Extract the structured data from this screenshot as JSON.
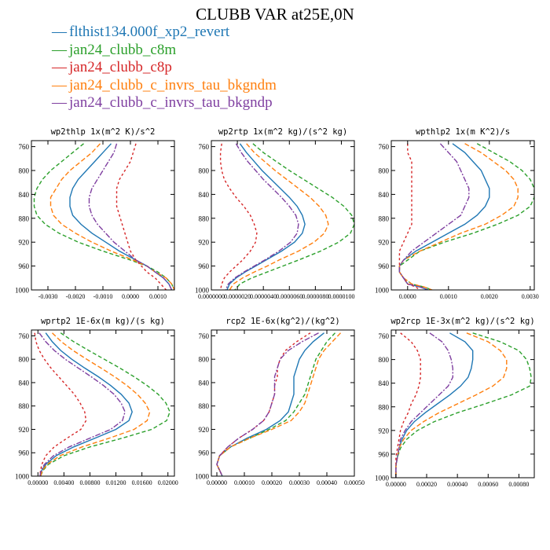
{
  "title": "CLUBB VAR at25E,0N",
  "legend": [
    {
      "label": "flthist134.000f_xp2_revert",
      "color": "#1f77b4",
      "symbol": "—"
    },
    {
      "label": "jan24_clubb_c8m",
      "color": "#2ca02c",
      "symbol": "—"
    },
    {
      "label": "jan24_clubb_c8p",
      "color": "#d62728",
      "symbol": "—"
    },
    {
      "label": "jan24_clubb_c_invrs_tau_bkgndm",
      "color": "#ff7f0e",
      "symbol": "—"
    },
    {
      "label": "jan24_clubb_c_invrs_tau_bkgndp",
      "color": "#7f3fa0",
      "symbol": "—"
    }
  ],
  "chart_data": [
    {
      "type": "line",
      "title": "wp2thlp  1x(m^2 K)/s^2",
      "xlim": [
        -0.0036,
        0.0016
      ],
      "ylim": [
        1000,
        750
      ],
      "xticks": [
        -0.003,
        -0.002,
        -0.001,
        0.0,
        0.001
      ],
      "xtick_labels": [
        "-0.0030",
        "-0.0020",
        "-0.0010",
        "0.0000",
        "0.0010"
      ],
      "yticks": [
        760,
        800,
        840,
        880,
        920,
        960,
        1000
      ],
      "y": [
        755,
        770,
        785,
        800,
        815,
        830,
        845,
        860,
        875,
        890,
        905,
        920,
        935,
        950,
        960,
        970,
        980,
        990,
        1000
      ],
      "series": [
        {
          "values": [
            -0.0007,
            -0.001,
            -0.0013,
            -0.0016,
            -0.0019,
            -0.0021,
            -0.0022,
            -0.0022,
            -0.0021,
            -0.0018,
            -0.0014,
            -0.0009,
            -0.0004,
            0.0002,
            0.0006,
            0.0009,
            0.0012,
            0.0014,
            0.0015
          ]
        },
        {
          "values": [
            -0.0017,
            -0.0021,
            -0.0025,
            -0.0029,
            -0.0032,
            -0.0034,
            -0.0035,
            -0.0035,
            -0.0034,
            -0.0031,
            -0.0026,
            -0.0019,
            -0.001,
            0.0,
            0.0006,
            0.001,
            0.0013,
            0.0015,
            0.0016
          ]
        },
        {
          "values": [
            0.0002,
            0.0001,
            0.0,
            -0.0002,
            -0.0004,
            -0.0005,
            -0.0005,
            -0.0005,
            -0.0004,
            -0.0003,
            -0.0002,
            -0.0001,
            0.0,
            0.0002,
            0.0004,
            0.0006,
            0.0009,
            0.0011,
            0.0013
          ]
        },
        {
          "values": [
            -0.0011,
            -0.0014,
            -0.0018,
            -0.0022,
            -0.0025,
            -0.0027,
            -0.0029,
            -0.0029,
            -0.0028,
            -0.0025,
            -0.002,
            -0.0014,
            -0.0007,
            0.0001,
            0.0006,
            0.0009,
            0.0013,
            0.0015,
            0.0016
          ]
        },
        {
          "values": [
            -0.0005,
            -0.0006,
            -0.0008,
            -0.001,
            -0.0012,
            -0.0014,
            -0.0015,
            -0.0015,
            -0.0014,
            -0.0012,
            -0.0009,
            -0.0006,
            -0.0002,
            0.0002,
            0.0006,
            0.0009,
            0.0012,
            0.0014,
            0.0015
          ]
        }
      ]
    },
    {
      "type": "line",
      "title": "wp2rtp  1x(m^2 kg)/(s^2 kg)",
      "xlim": [
        0.0,
        1.1e-05
      ],
      "ylim": [
        1000,
        750
      ],
      "xticks": [
        0.0,
        2e-06,
        4e-06,
        6e-06,
        8e-06,
        1e-05
      ],
      "xtick_labels": [
        "0.0000000",
        "0.0000020",
        "0.0000040",
        "0.0000060",
        "0.0000080",
        "0.0000100"
      ],
      "yticks": [
        760,
        800,
        840,
        880,
        920,
        960,
        1000
      ],
      "y": [
        755,
        770,
        785,
        800,
        815,
        830,
        845,
        860,
        875,
        890,
        905,
        920,
        935,
        950,
        960,
        970,
        980,
        990,
        1000
      ],
      "series": [
        {
          "values": [
            2.2e-06,
            2.7e-06,
            3.3e-06,
            3.9e-06,
            4.6e-06,
            5.3e-06,
            6e-06,
            6.6e-06,
            7e-06,
            7.2e-06,
            7e-06,
            6.4e-06,
            5.4e-06,
            4.2e-06,
            3.4e-06,
            2.6e-06,
            1.9e-06,
            1.4e-06,
            1.2e-06
          ]
        },
        {
          "values": [
            3.2e-06,
            4e-06,
            5e-06,
            6e-06,
            7.1e-06,
            8.2e-06,
            9.3e-06,
            1.02e-05,
            1.08e-05,
            1.1e-05,
            1.07e-05,
            9.8e-06,
            8.4e-06,
            6.7e-06,
            5.5e-06,
            4.3e-06,
            3.1e-06,
            2.2e-06,
            1.8e-06
          ]
        },
        {
          "values": [
            8e-07,
            7e-07,
            7e-07,
            8e-07,
            1e-06,
            1.4e-06,
            1.9e-06,
            2.5e-06,
            3e-06,
            3.3e-06,
            3.5e-06,
            3.4e-06,
            3e-06,
            2.4e-06,
            1.9e-06,
            1.4e-06,
            1e-06,
            8e-07,
            7e-07
          ]
        },
        {
          "values": [
            2.7e-06,
            3.3e-06,
            4.1e-06,
            4.9e-06,
            5.8e-06,
            6.7e-06,
            7.6e-06,
            8.3e-06,
            8.8e-06,
            9e-06,
            8.7e-06,
            7.9e-06,
            6.7e-06,
            5.2e-06,
            4.3e-06,
            3.3e-06,
            2.4e-06,
            1.7e-06,
            1.4e-06
          ]
        },
        {
          "values": [
            1.9e-06,
            2.3e-06,
            2.8e-06,
            3.4e-06,
            4e-06,
            4.7e-06,
            5.4e-06,
            6e-06,
            6.5e-06,
            6.7e-06,
            6.6e-06,
            6.1e-06,
            5.2e-06,
            4.1e-06,
            3.3e-06,
            2.5e-06,
            1.8e-06,
            1.3e-06,
            1.1e-06
          ]
        }
      ]
    },
    {
      "type": "line",
      "title": "wpthlp2  1x(m K^2)/s",
      "xlim": [
        -0.0004,
        0.0031
      ],
      "ylim": [
        1000,
        750
      ],
      "xticks": [
        0.0,
        0.001,
        0.002,
        0.003
      ],
      "xtick_labels": [
        "0.0000",
        "0.0010",
        "0.0020",
        "0.0030"
      ],
      "yticks": [
        760,
        800,
        840,
        880,
        920,
        960,
        1000
      ],
      "y": [
        755,
        770,
        785,
        800,
        815,
        830,
        845,
        860,
        875,
        890,
        905,
        920,
        935,
        950,
        960,
        970,
        980,
        990,
        995,
        1000
      ],
      "series": [
        {
          "values": [
            0.0011,
            0.0014,
            0.0016,
            0.0018,
            0.0019,
            0.002,
            0.002,
            0.0019,
            0.0017,
            0.0014,
            0.001,
            0.0006,
            0.0002,
            -0.0001,
            -0.0002,
            -0.0002,
            -0.0001,
            0.0,
            0.0003,
            0.0005
          ]
        },
        {
          "values": [
            0.0017,
            0.0021,
            0.0025,
            0.0028,
            0.003,
            0.0031,
            0.0031,
            0.003,
            0.0027,
            0.0022,
            0.0016,
            0.0009,
            0.0003,
            0.0,
            -0.0002,
            -0.0002,
            -0.0001,
            0.0001,
            0.0004,
            0.0006
          ]
        },
        {
          "values": [
            0.0,
            0.0,
            0.0001,
            0.0001,
            0.0001,
            0.0001,
            0.0001,
            0.0001,
            0.0001,
            0.0001,
            0.0,
            -0.0001,
            -0.0002,
            -0.0002,
            -0.0002,
            -0.0002,
            -0.0001,
            0.0,
            0.0002,
            0.0003
          ]
        },
        {
          "values": [
            0.0014,
            0.0018,
            0.0021,
            0.0024,
            0.0026,
            0.0027,
            0.0027,
            0.0026,
            0.0023,
            0.0019,
            0.0013,
            0.0008,
            0.0003,
            -0.0001,
            -0.0002,
            -0.0002,
            -0.0001,
            0.0001,
            0.0004,
            0.0006
          ]
        },
        {
          "values": [
            0.0008,
            0.001,
            0.0012,
            0.0013,
            0.0014,
            0.0015,
            0.0015,
            0.0014,
            0.0013,
            0.001,
            0.0007,
            0.0004,
            0.0001,
            -0.0001,
            -0.0002,
            -0.0002,
            -0.0001,
            0.0,
            0.0003,
            0.0005
          ]
        }
      ]
    },
    {
      "type": "line",
      "title": "wprtp2  1E-6x(m kg)/(s kg)",
      "xlim": [
        -0.001,
        0.021
      ],
      "ylim": [
        1000,
        750
      ],
      "xticks": [
        0.0,
        0.004,
        0.008,
        0.012,
        0.016,
        0.02
      ],
      "xtick_labels": [
        "0.00000",
        "0.00400",
        "0.00800",
        "0.01200",
        "0.01600",
        "0.02000"
      ],
      "yticks": [
        760,
        800,
        840,
        880,
        920,
        960,
        1000
      ],
      "y": [
        755,
        770,
        785,
        800,
        815,
        830,
        845,
        860,
        875,
        890,
        905,
        920,
        935,
        950,
        965,
        980,
        990,
        1000
      ],
      "series": [
        {
          "values": [
            0.0012,
            0.0022,
            0.0035,
            0.0052,
            0.0072,
            0.0093,
            0.0112,
            0.0128,
            0.014,
            0.0145,
            0.014,
            0.012,
            0.0088,
            0.0055,
            0.0028,
            0.0012,
            0.0006,
            0.0004
          ]
        },
        {
          "values": [
            0.0035,
            0.0055,
            0.0078,
            0.0102,
            0.0126,
            0.0148,
            0.0168,
            0.0185,
            0.0197,
            0.0203,
            0.0198,
            0.0175,
            0.013,
            0.008,
            0.004,
            0.0016,
            0.0008,
            0.0004
          ]
        },
        {
          "values": [
            -0.0005,
            -0.0003,
            0.0002,
            0.001,
            0.002,
            0.0032,
            0.0044,
            0.0056,
            0.0065,
            0.0072,
            0.0074,
            0.0066,
            0.0045,
            0.0025,
            0.0012,
            0.0006,
            0.0004,
            0.0003
          ]
        },
        {
          "values": [
            0.0022,
            0.0036,
            0.0054,
            0.0075,
            0.0097,
            0.0118,
            0.0137,
            0.0153,
            0.0165,
            0.0172,
            0.0168,
            0.0148,
            0.011,
            0.0068,
            0.0034,
            0.0014,
            0.0007,
            0.0004
          ]
        },
        {
          "values": [
            0.0002,
            0.0012,
            0.0025,
            0.0042,
            0.0062,
            0.0082,
            0.0101,
            0.0117,
            0.0128,
            0.0134,
            0.013,
            0.0112,
            0.008,
            0.0048,
            0.0024,
            0.001,
            0.0005,
            0.0003
          ]
        }
      ]
    },
    {
      "type": "line",
      "title": "rcp2  1E-6x(kg^2)/(kg^2)",
      "xlim": [
        -2e-05,
        0.0005
      ],
      "ylim": [
        1000,
        750
      ],
      "xticks": [
        0.0,
        0.0001,
        0.0002,
        0.0003,
        0.0004,
        0.0005
      ],
      "xtick_labels": [
        "0.00000",
        "0.00010",
        "0.00020",
        "0.00030",
        "0.00040",
        "0.00050"
      ],
      "yticks": [
        760,
        800,
        840,
        880,
        920,
        960,
        1000
      ],
      "y": [
        755,
        770,
        785,
        800,
        815,
        830,
        845,
        860,
        875,
        890,
        905,
        920,
        935,
        950,
        965,
        980,
        990,
        1000
      ],
      "series": [
        {
          "values": [
            0.00039,
            0.00035,
            0.00032,
            0.0003,
            0.00029,
            0.00028,
            0.00028,
            0.00028,
            0.00027,
            0.00026,
            0.00023,
            0.00018,
            0.00011,
            5e-05,
            1e-05,
            0.0,
            1e-05,
            2e-05
          ]
        },
        {
          "values": [
            0.00043,
            0.0004,
            0.00038,
            0.00036,
            0.00035,
            0.00034,
            0.00033,
            0.00032,
            0.0003,
            0.00028,
            0.00025,
            0.00019,
            0.00012,
            5e-05,
            1e-05,
            0.0,
            1e-05,
            2e-05
          ]
        },
        {
          "values": [
            0.00034,
            0.00029,
            0.00025,
            0.00023,
            0.00022,
            0.00022,
            0.00021,
            0.00021,
            0.0002,
            0.00019,
            0.00017,
            0.00013,
            8e-05,
            4e-05,
            1e-05,
            0.0,
            1e-05,
            2e-05
          ]
        },
        {
          "values": [
            0.00045,
            0.00042,
            0.00039,
            0.00037,
            0.00036,
            0.00035,
            0.00034,
            0.00033,
            0.00032,
            0.0003,
            0.00027,
            0.0002,
            0.00012,
            5e-05,
            1e-05,
            0.0,
            1e-05,
            2e-05
          ]
        },
        {
          "values": [
            0.00037,
            0.00031,
            0.00026,
            0.00023,
            0.00022,
            0.00021,
            0.00021,
            0.00021,
            0.0002,
            0.00019,
            0.00017,
            0.00013,
            8e-05,
            4e-05,
            1e-05,
            0.0,
            1e-05,
            2e-05
          ]
        }
      ]
    },
    {
      "type": "line",
      "title": "wp2rcp  1E-3x(m^2 kg)/(s^2 kg)",
      "xlim": [
        -3e-05,
        0.0009
      ],
      "ylim": [
        1000,
        750
      ],
      "xticks": [
        0.0,
        0.0002,
        0.0004,
        0.0006,
        0.0008
      ],
      "xtick_labels": [
        "0.00000",
        "0.00020",
        "0.00040",
        "0.00060",
        "0.00080"
      ],
      "yticks": [
        760,
        800,
        840,
        880,
        920,
        960,
        1000
      ],
      "y": [
        755,
        770,
        785,
        800,
        815,
        830,
        845,
        860,
        875,
        890,
        905,
        920,
        935,
        950,
        965,
        980,
        990,
        1000
      ],
      "series": [
        {
          "values": [
            0.00035,
            0.00045,
            0.0005,
            0.0005,
            0.00049,
            0.00047,
            0.00042,
            0.00035,
            0.00027,
            0.00019,
            0.00012,
            7e-05,
            4e-05,
            2e-05,
            1e-05,
            0.0,
            0.0,
            0.0
          ]
        },
        {
          "values": [
            0.0005,
            0.00068,
            0.0008,
            0.00085,
            0.00087,
            0.00088,
            0.00087,
            0.00075,
            0.00058,
            0.0004,
            0.00025,
            0.00014,
            7e-05,
            3e-05,
            1e-05,
            0.0,
            0.0,
            0.0
          ]
        },
        {
          "values": [
            3e-05,
            0.0001,
            0.00014,
            0.00016,
            0.00016,
            0.00016,
            0.00015,
            0.00013,
            0.0001,
            8e-05,
            5e-05,
            3e-05,
            2e-05,
            1e-05,
            0.0,
            0.0,
            0.0,
            0.0
          ]
        },
        {
          "values": [
            0.00046,
            0.0006,
            0.00068,
            0.00072,
            0.00072,
            0.0007,
            0.00063,
            0.00052,
            0.0004,
            0.00028,
            0.00018,
            0.0001,
            5e-05,
            2e-05,
            1e-05,
            0.0,
            0.0,
            0.0
          ]
        },
        {
          "values": [
            0.00022,
            0.0003,
            0.00034,
            0.00036,
            0.00037,
            0.00037,
            0.00034,
            0.00028,
            0.00022,
            0.00016,
            0.0001,
            6e-05,
            3e-05,
            2e-05,
            1e-05,
            0.0,
            0.0,
            0.0
          ]
        }
      ]
    }
  ]
}
